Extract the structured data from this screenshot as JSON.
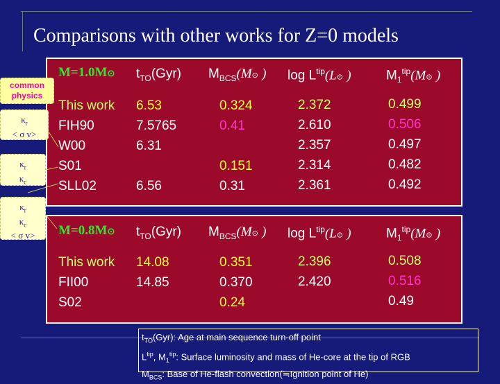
{
  "slide": {
    "title": "Comparisons with other works for Z=0 models"
  },
  "header_labels": {
    "tto": "t",
    "tto_sub": "TO",
    "tto_unit": "(Gyr)",
    "mbcs": "M",
    "mbcs_sub": "BCS",
    "mbcs_unit": "(M",
    "logl": "log L",
    "logl_sup": "tip",
    "logl_unit": "(L",
    "m1": "M",
    "m1_sub": "1",
    "m1_sup": "tip",
    "m1_unit": "(M",
    "sun_symbol": "⊙",
    "close_paren": ")"
  },
  "panel1": {
    "mass_label": "M=1.0M",
    "rows": [
      {
        "work": "This work",
        "tto": "6.53",
        "mbcs": "0.324",
        "logl": "2.372",
        "m1": "0.499"
      },
      {
        "work": "FIH90",
        "tto": "7.5765",
        "mbcs": "0.41",
        "logl": "2.610",
        "m1": "0.506"
      },
      {
        "work": "W00",
        "tto": "6.31",
        "mbcs": "",
        "logl": "2.357",
        "m1": "0.497"
      },
      {
        "work": "S01",
        "tto": "",
        "mbcs": "0.151",
        "logl": "2.314",
        "m1": "0.482"
      },
      {
        "work": "SLL02",
        "tto": "6.56",
        "mbcs": "0.31",
        "logl": "2.361",
        "m1": "0.492"
      }
    ]
  },
  "panel2": {
    "mass_label": "M=0.8M",
    "rows": [
      {
        "work": "This work",
        "tto": "14.08",
        "mbcs": "0.351",
        "logl": "2.396",
        "m1": "0.508"
      },
      {
        "work": "FII00",
        "tto": "14.85",
        "mbcs": "0.370",
        "logl": "2.420",
        "m1": "0.516"
      },
      {
        "work": "S02",
        "tto": "",
        "mbcs": "0.24",
        "logl": "",
        "m1": "0.49"
      }
    ]
  },
  "callouts": {
    "title_line1": "common",
    "title_line2": "physics",
    "kappa": "κ",
    "sub_r": "r",
    "sub_c": "c",
    "sigma_v": "< σ v>"
  },
  "note": {
    "line1_prefix": "t",
    "line1_sub": "TO",
    "line1_text": "(Gyr): Age at main sequence turn-off point",
    "line2_L": "L",
    "line2_sup": "tip",
    "line2_mid": ", M",
    "line2_sub": "1",
    "line2_sup2": "tip",
    "line2_text": ": Surface luminosity and mass of He-core at the tip of RGB",
    "line3_M": "M",
    "line3_sub": "BCS",
    "line3_text": ": Base of He-flash convection(≒Ignition point of He)"
  },
  "colors": {
    "background": "#161a78",
    "panel": "#9b0a2a",
    "mass_label": "#2ee82e",
    "yellow": "#ffff33",
    "green": "#ccff66",
    "magenta": "#ff33cc"
  }
}
